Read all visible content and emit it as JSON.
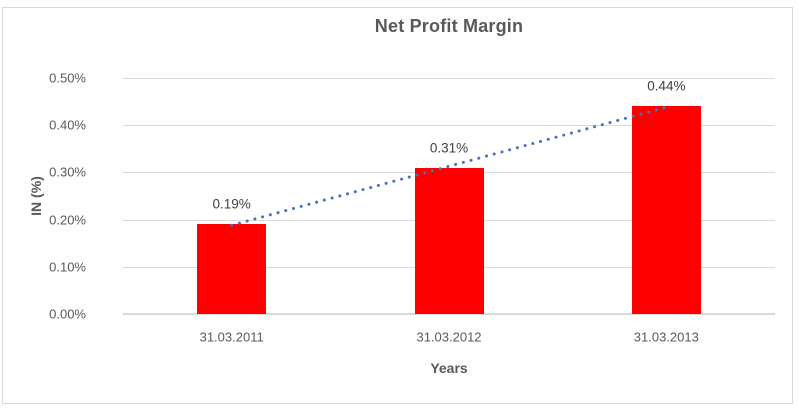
{
  "window": {
    "background": "#ffffff",
    "border_color": "#d9d9d9"
  },
  "chart_data": {
    "type": "bar",
    "title": "Net Profit Margin",
    "xlabel": "Years",
    "ylabel": "IN (%)",
    "categories": [
      "31.03.2011",
      "31.03.2012",
      "31.03.2013"
    ],
    "values": [
      0.19,
      0.31,
      0.44
    ],
    "value_labels": [
      "0.19%",
      "0.31%",
      "0.44%"
    ],
    "units": "percent",
    "ylim": [
      0,
      0.5
    ],
    "yticks": [
      0,
      0.1,
      0.2,
      0.3,
      0.4,
      0.5
    ],
    "ytick_labels": [
      "0.00%",
      "0.10%",
      "0.20%",
      "0.30%",
      "0.40%",
      "0.50%"
    ],
    "grid": true,
    "legend_position": "none",
    "bar_color": "#ff0000",
    "trendline": {
      "type": "linear",
      "style": "dotted",
      "color": "#4472c4",
      "start_value": 0.188,
      "end_value": 0.438
    }
  },
  "colors": {
    "title_text": "#595959",
    "axis_text": "#595959",
    "data_label_text": "#404040",
    "gridline": "#d9d9d9",
    "axis_line": "#d9d9d9"
  }
}
